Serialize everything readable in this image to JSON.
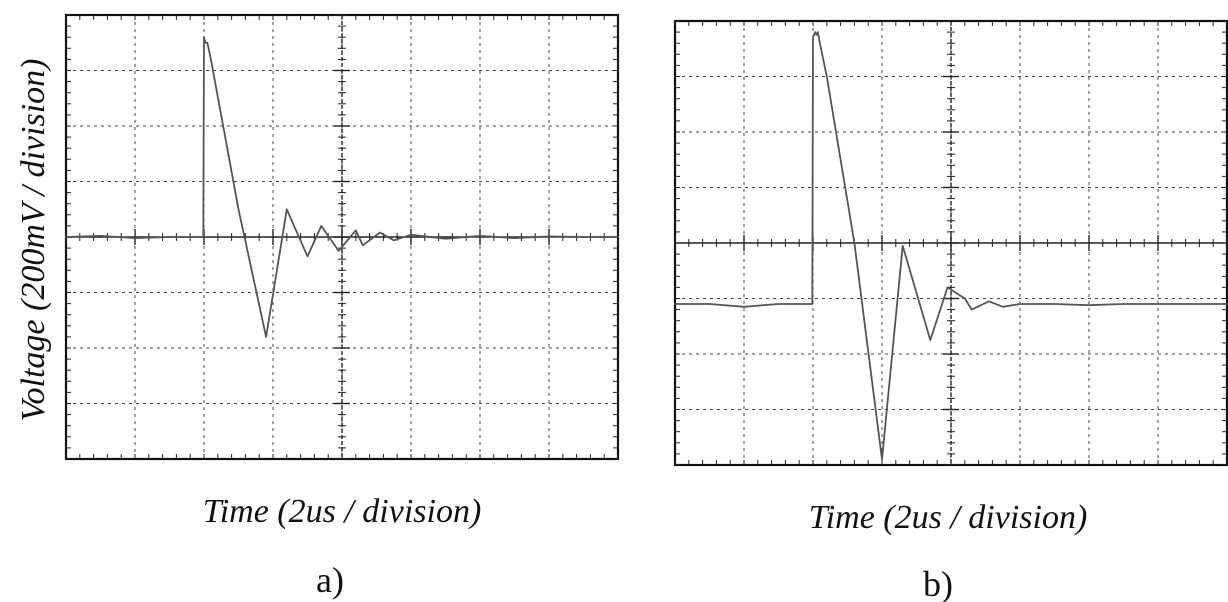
{
  "y_axis_label": "Voltage (200mV / division)",
  "chart_data": [
    {
      "type": "line",
      "panel_label": "a)",
      "xlabel": "Time (2us / division)",
      "ylabel": "Voltage (200mV / division)",
      "x_unit": "divisions",
      "y_unit": "divisions",
      "xlim": [
        0,
        8
      ],
      "ylim": [
        -4,
        4
      ],
      "grid": true,
      "series": [
        {
          "color": "#555555",
          "x": [
            0,
            0.5,
            1.0,
            1.5,
            1.99,
            2.0,
            2.02,
            2.05,
            2.1,
            2.5,
            2.9,
            3.2,
            3.5,
            3.7,
            3.95,
            4.2,
            4.3,
            4.55,
            4.75,
            5.0,
            5.5,
            6.0,
            6.5,
            7.0,
            7.5,
            8.0
          ],
          "y": [
            0,
            0.02,
            -0.02,
            0,
            0,
            3.6,
            3.5,
            3.5,
            3.2,
            0.5,
            -1.8,
            0.5,
            -0.35,
            0.2,
            -0.25,
            0.12,
            -0.15,
            0.08,
            -0.06,
            0.04,
            -0.03,
            0.02,
            -0.02,
            0.01,
            0,
            0
          ]
        }
      ]
    },
    {
      "type": "line",
      "panel_label": "b)",
      "xlabel": "Time (2us / division)",
      "ylabel": "",
      "x_unit": "divisions",
      "y_unit": "divisions",
      "xlim": [
        0,
        8
      ],
      "ylim": [
        -4,
        4
      ],
      "grid": true,
      "series": [
        {
          "color": "#555555",
          "x": [
            0,
            0.5,
            1.0,
            1.5,
            1.99,
            2.0,
            2.03,
            2.05,
            2.07,
            2.1,
            2.2,
            2.6,
            3.0,
            3.3,
            3.7,
            3.95,
            4.2,
            4.3,
            4.55,
            4.75,
            5.0,
            5.5,
            6.0,
            6.5,
            7.0,
            7.5,
            8.0
          ],
          "y": [
            -1.1,
            -1.1,
            -1.15,
            -1.1,
            -1.1,
            3.7,
            3.8,
            3.75,
            3.8,
            3.6,
            3.0,
            0.0,
            -3.9,
            -0.05,
            -1.75,
            -0.8,
            -1.0,
            -1.2,
            -1.05,
            -1.15,
            -1.1,
            -1.1,
            -1.12,
            -1.1,
            -1.1,
            -1.1,
            -1.1
          ]
        }
      ]
    }
  ]
}
